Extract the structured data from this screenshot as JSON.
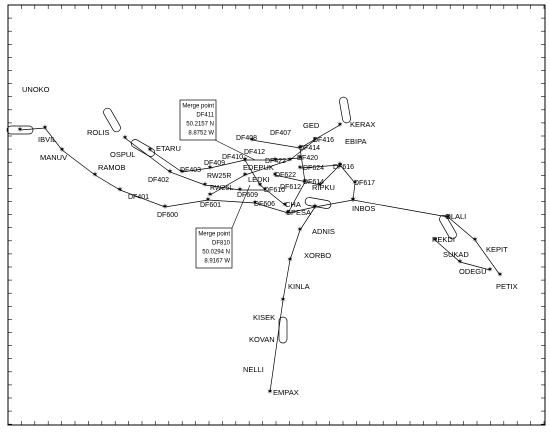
{
  "waypoints": [
    "UNOKO",
    "IBVIL",
    "MANUV",
    "ROLIS",
    "OSPUL",
    "ETARU",
    "RAMOB",
    "DF401",
    "DF402",
    "DF403",
    "DF600",
    "DF601",
    "DF409",
    "DF410",
    "DF408",
    "DF412",
    "DF407",
    "GED",
    "KERAX",
    "EBIPA",
    "DF416",
    "DF414",
    "DF422",
    "DF420",
    "DF624",
    "DF616",
    "DF622",
    "DF614",
    "DF612",
    "DF610",
    "DF609",
    "DF606",
    "DF617",
    "EDEPUK",
    "RW25R",
    "RW25L",
    "LEDKI",
    "CHA",
    "RIPKU",
    "SPESA",
    "INBOS",
    "OLALI",
    "REKDI",
    "KEPIT",
    "SUKAD",
    "ODEGU",
    "PETIX",
    "ADNIS",
    "XORBO",
    "KINLA",
    "KISEK",
    "KOVAN",
    "NELLI",
    "EMPAX"
  ],
  "merge_points": [
    {
      "lines": [
        "Merge point",
        "DF411",
        "50.2157 N",
        "8.8752 W"
      ]
    },
    {
      "lines": [
        "Merge point",
        "DF810",
        "50.0294 N",
        "8.9167 W"
      ]
    }
  ]
}
